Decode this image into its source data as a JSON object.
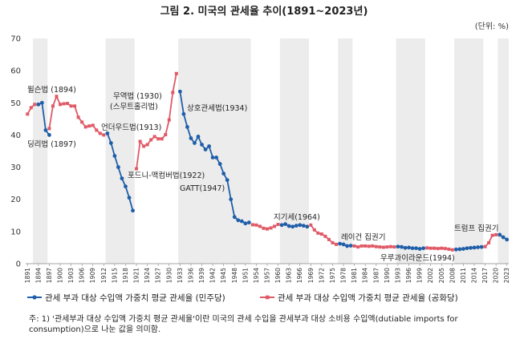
{
  "title": "그림 2. 미국의 관세율 추이(1891~2023년)",
  "unit": "(단위: %)",
  "note": "주: 1) '관세부과 대상 수입액 가중치 평균 관세율'이란 미국의 관세 수입을 관세부과 대상 소비용 수입액(dutiable imports for consumption)으로 나눈 값을 의미함.",
  "chart_data": {
    "type": "line",
    "xlim": [
      1891,
      2023
    ],
    "ylim": [
      0,
      70
    ],
    "yticks": [
      0,
      10,
      20,
      30,
      40,
      50,
      60,
      70
    ],
    "xticks": [
      1891,
      1894,
      1897,
      1900,
      1903,
      1906,
      1909,
      1912,
      1915,
      1918,
      1921,
      1924,
      1927,
      1930,
      1933,
      1936,
      1939,
      1942,
      1945,
      1948,
      1951,
      1954,
      1957,
      1960,
      1963,
      1966,
      1969,
      1972,
      1975,
      1978,
      1981,
      1984,
      1987,
      1990,
      1993,
      1996,
      1999,
      2002,
      2005,
      2008,
      2011,
      2014,
      2017,
      2020,
      2023
    ],
    "xtick_labels": [
      "1891",
      "1894",
      "1897",
      "1900",
      "1903",
      "1906",
      "1909",
      "1912",
      "1915",
      "1918",
      "1921",
      "1924",
      "1927",
      "1930",
      "1933",
      "1936",
      "1939",
      "1942",
      "1945",
      "1948",
      "1951",
      "1954",
      "1957",
      "1960",
      "1963",
      "1966",
      "1969",
      "1972",
      "1975",
      "1978",
      "1981",
      "1984",
      "1987",
      "1990",
      "1993",
      "1996",
      "1999",
      "2002",
      "2005",
      "2008",
      "2011",
      "2014",
      "2017",
      "2020",
      "2023"
    ],
    "democrat_periods": [
      [
        1893,
        1897
      ],
      [
        1913,
        1921
      ],
      [
        1933,
        1953
      ],
      [
        1961,
        1969
      ],
      [
        1977,
        1981
      ],
      [
        1993,
        2001
      ],
      [
        2009,
        2017
      ],
      [
        2021,
        2024
      ]
    ],
    "series": [
      {
        "name": "관세 부과 대상 수입액 가중치 평균 관세율 (민주당)",
        "color": "#1f5ea8",
        "segments": [
          [
            [
              1894,
              49.5
            ],
            [
              1895,
              50
            ],
            [
              1896,
              41.5
            ],
            [
              1897,
              40
            ]
          ],
          [
            [
              1913,
              40.5
            ],
            [
              1914,
              37.5
            ],
            [
              1915,
              33.5
            ],
            [
              1916,
              30
            ],
            [
              1917,
              26.5
            ],
            [
              1918,
              24
            ],
            [
              1919,
              20.5
            ],
            [
              1920,
              16.5
            ]
          ],
          [
            [
              1933,
              53.5
            ],
            [
              1934,
              46.5
            ],
            [
              1935,
              42.5
            ],
            [
              1936,
              39
            ],
            [
              1937,
              37.5
            ],
            [
              1938,
              39.5
            ],
            [
              1939,
              37
            ],
            [
              1940,
              35.5
            ],
            [
              1941,
              36.5
            ],
            [
              1942,
              33
            ],
            [
              1943,
              33
            ],
            [
              1944,
              31
            ],
            [
              1945,
              28
            ],
            [
              1946,
              26
            ],
            [
              1947,
              20
            ],
            [
              1948,
              14.5
            ],
            [
              1949,
              13.5
            ],
            [
              1950,
              13.2
            ],
            [
              1951,
              12.5
            ],
            [
              1952,
              12.8
            ]
          ],
          [
            [
              1961,
              12
            ],
            [
              1962,
              12.3
            ],
            [
              1963,
              11.7
            ],
            [
              1964,
              11.5
            ],
            [
              1965,
              11.8
            ],
            [
              1966,
              12
            ],
            [
              1967,
              11.8
            ],
            [
              1968,
              11.5
            ]
          ],
          [
            [
              1977,
              6.2
            ],
            [
              1978,
              6
            ],
            [
              1979,
              5.5
            ],
            [
              1980,
              5.6
            ]
          ],
          [
            [
              1993,
              5.3
            ],
            [
              1994,
              5.2
            ],
            [
              1995,
              4.9
            ],
            [
              1996,
              5
            ],
            [
              1997,
              4.8
            ],
            [
              1998,
              4.8
            ],
            [
              1999,
              4.6
            ],
            [
              2000,
              4.8
            ]
          ],
          [
            [
              2009,
              4.4
            ],
            [
              2010,
              4.5
            ],
            [
              2011,
              4.6
            ],
            [
              2012,
              4.8
            ],
            [
              2013,
              4.9
            ],
            [
              2014,
              5
            ],
            [
              2015,
              5.1
            ],
            [
              2016,
              5.2
            ]
          ],
          [
            [
              2021,
              9
            ],
            [
              2022,
              8.2
            ],
            [
              2023,
              7.5
            ]
          ]
        ]
      },
      {
        "name": "관세 부과 대상 수입액 가중치 평균 관세율 (공화당)",
        "color": "#e05a66",
        "segments": [
          [
            [
              1891,
              46.5
            ],
            [
              1892,
              48.5
            ],
            [
              1893,
              49.5
            ]
          ],
          [
            [
              1897,
              42
            ],
            [
              1898,
              49
            ],
            [
              1899,
              52
            ],
            [
              1900,
              49.5
            ],
            [
              1901,
              49.7
            ],
            [
              1902,
              49.8
            ],
            [
              1903,
              49
            ],
            [
              1904,
              49
            ],
            [
              1905,
              45.5
            ],
            [
              1906,
              44
            ],
            [
              1907,
              42.5
            ],
            [
              1908,
              42.8
            ],
            [
              1909,
              43
            ],
            [
              1910,
              41.5
            ],
            [
              1911,
              40.5
            ],
            [
              1912,
              40
            ]
          ],
          [
            [
              1921,
              29.5
            ],
            [
              1922,
              38
            ],
            [
              1923,
              36.5
            ],
            [
              1924,
              37
            ],
            [
              1925,
              38.5
            ],
            [
              1926,
              39.5
            ],
            [
              1927,
              38.8
            ],
            [
              1928,
              38.8
            ],
            [
              1929,
              40.1
            ],
            [
              1930,
              44.7
            ],
            [
              1931,
              53.2
            ],
            [
              1932,
              59.1
            ]
          ],
          [
            [
              1953,
              12.1
            ],
            [
              1954,
              12
            ],
            [
              1955,
              11.6
            ],
            [
              1956,
              11
            ],
            [
              1957,
              10.8
            ],
            [
              1958,
              11.1
            ],
            [
              1959,
              11.6
            ],
            [
              1960,
              12.2
            ]
          ],
          [
            [
              1969,
              12
            ],
            [
              1970,
              10.5
            ],
            [
              1971,
              9.5
            ],
            [
              1972,
              9.2
            ],
            [
              1973,
              8.5
            ],
            [
              1974,
              7.5
            ],
            [
              1975,
              6.5
            ],
            [
              1976,
              6
            ]
          ],
          [
            [
              1981,
              5.5
            ],
            [
              1982,
              5.2
            ],
            [
              1983,
              5.5
            ],
            [
              1984,
              5.5
            ],
            [
              1985,
              5.4
            ],
            [
              1986,
              5.5
            ],
            [
              1987,
              5.3
            ],
            [
              1988,
              5.2
            ],
            [
              1989,
              5.1
            ],
            [
              1990,
              5.2
            ],
            [
              1991,
              5.3
            ],
            [
              1992,
              5.2
            ]
          ],
          [
            [
              2001,
              4.9
            ],
            [
              2002,
              4.8
            ],
            [
              2003,
              4.8
            ],
            [
              2004,
              4.7
            ],
            [
              2005,
              4.8
            ],
            [
              2006,
              4.7
            ],
            [
              2007,
              4.5
            ],
            [
              2008,
              4.3
            ]
          ],
          [
            [
              2017,
              5.3
            ],
            [
              2018,
              6.5
            ],
            [
              2019,
              8.8
            ],
            [
              2020,
              9
            ]
          ]
        ]
      }
    ],
    "annotations": [
      "윌슨법 (1894)",
      "딩리법 (1897)",
      "언더우드법(1913)",
      "무역법 (1930)",
      "(스무트홀리법)",
      "상호관세법(1934)",
      "포드니-맥컴버법(1922)",
      "GATT(1947)",
      "지기세(1964)",
      "레이건 집권기",
      "트럼프 집권기",
      "우루과이라운드(1994)"
    ],
    "legend": [
      "관세 부과 대상 수입액 가중치 평균 관세율 (민주당)",
      "관세 부과 대상 수입액 가중치 평균 관세율 (공화당)"
    ],
    "grid": false,
    "legend_position": "bottom"
  }
}
